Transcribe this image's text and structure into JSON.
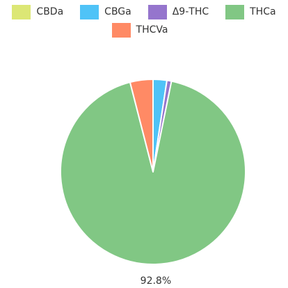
{
  "chart_data": {
    "type": "pie",
    "legend_position": "top",
    "series": [
      {
        "name": "CBDa",
        "value": 0.0,
        "color": "#dce775"
      },
      {
        "name": "CBGa",
        "value": 2.4,
        "color": "#4fc3f7"
      },
      {
        "name": "Δ9-THC",
        "value": 0.8,
        "color": "#9575cd"
      },
      {
        "name": "THCa",
        "value": 92.8,
        "color": "#81c784"
      },
      {
        "name": "THCVa",
        "value": 4.0,
        "color": "#ff8a65"
      }
    ],
    "data_labels": [
      {
        "series": "THCa",
        "text": "92.8%"
      }
    ]
  }
}
